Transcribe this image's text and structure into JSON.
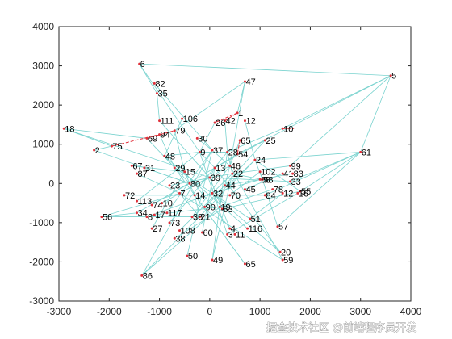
{
  "chart_data": {
    "type": "scatter",
    "title": "",
    "xlabel": "",
    "ylabel": "",
    "xlim": [
      -3000,
      4000
    ],
    "ylim": [
      -3000,
      4000
    ],
    "xticks": [
      -3000,
      -2000,
      -1000,
      0,
      1000,
      2000,
      3000,
      4000
    ],
    "yticks": [
      -3000,
      -2000,
      -1000,
      0,
      1000,
      2000,
      3000,
      4000
    ],
    "xtick_labels": [
      "-3000",
      "-2000",
      "-1000",
      "0",
      "1000",
      "2000",
      "3000",
      "4000"
    ],
    "ytick_labels": [
      "-3000",
      "-2000",
      "-1000",
      "0",
      "1000",
      "2000",
      "3000",
      "4000"
    ],
    "grid": false,
    "edge_color": "#7ad3cf",
    "highlight_color": "#e0303a",
    "nodes": [
      {
        "id": "6",
        "x": -1400,
        "y": 3050
      },
      {
        "id": "5",
        "x": 3600,
        "y": 2750
      },
      {
        "id": "82",
        "x": -1100,
        "y": 2550
      },
      {
        "id": "35",
        "x": -1050,
        "y": 2300
      },
      {
        "id": "47",
        "x": 700,
        "y": 2600
      },
      {
        "id": "1",
        "x": 550,
        "y": 1800
      },
      {
        "id": "12",
        "x": 700,
        "y": 1600
      },
      {
        "id": "26",
        "x": 100,
        "y": 1550
      },
      {
        "id": "42",
        "x": 300,
        "y": 1600
      },
      {
        "id": "106",
        "x": -550,
        "y": 1650
      },
      {
        "id": "111",
        "x": -1000,
        "y": 1600
      },
      {
        "id": "79",
        "x": -700,
        "y": 1350
      },
      {
        "id": "94",
        "x": -1000,
        "y": 1250
      },
      {
        "id": "69",
        "x": -1250,
        "y": 1150
      },
      {
        "id": "18",
        "x": -2900,
        "y": 1400
      },
      {
        "id": "2",
        "x": -2300,
        "y": 850
      },
      {
        "id": "75",
        "x": -1950,
        "y": 950
      },
      {
        "id": "10",
        "x": 1450,
        "y": 1400
      },
      {
        "id": "25",
        "x": 1100,
        "y": 1100
      },
      {
        "id": "30",
        "x": -250,
        "y": 1150
      },
      {
        "id": "65",
        "x": 600,
        "y": 1100
      },
      {
        "id": "54",
        "x": 550,
        "y": 750
      },
      {
        "id": "61",
        "x": 3000,
        "y": 800
      },
      {
        "id": "99",
        "x": 1600,
        "y": 450
      },
      {
        "id": "41",
        "x": 1450,
        "y": 250
      },
      {
        "id": "83",
        "x": 1650,
        "y": 250
      },
      {
        "id": "102",
        "x": 1000,
        "y": 300
      },
      {
        "id": "68",
        "x": 1000,
        "y": 100
      },
      {
        "id": "33",
        "x": 1600,
        "y": 50
      },
      {
        "id": "78",
        "x": 1250,
        "y": -150
      },
      {
        "id": "12b",
        "label": "12",
        "x": 1450,
        "y": -250
      },
      {
        "id": "55",
        "x": 1800,
        "y": -200
      },
      {
        "id": "16",
        "x": 1750,
        "y": -250
      },
      {
        "id": "84",
        "x": 1100,
        "y": -300
      },
      {
        "id": "70",
        "x": 400,
        "y": -300
      },
      {
        "id": "45",
        "x": 700,
        "y": -150
      },
      {
        "id": "67",
        "x": -1550,
        "y": 450
      },
      {
        "id": "31",
        "x": -1300,
        "y": 400
      },
      {
        "id": "87",
        "x": -1450,
        "y": 250
      },
      {
        "id": "72",
        "x": -1700,
        "y": -300
      },
      {
        "id": "113",
        "x": -1450,
        "y": -450
      },
      {
        "id": "74",
        "x": -1150,
        "y": -550
      },
      {
        "id": "10b",
        "label": "10",
        "x": -950,
        "y": -500
      },
      {
        "id": "23",
        "x": -800,
        "y": -50
      },
      {
        "id": "56",
        "x": -2150,
        "y": -850
      },
      {
        "id": "34",
        "x": -1450,
        "y": -750
      },
      {
        "id": "8",
        "x": -1250,
        "y": -850
      },
      {
        "id": "17",
        "x": -1100,
        "y": -800
      },
      {
        "id": "117",
        "x": -850,
        "y": -750
      },
      {
        "id": "73",
        "x": -800,
        "y": -1000
      },
      {
        "id": "27",
        "x": -1150,
        "y": -1150
      },
      {
        "id": "108",
        "x": -600,
        "y": -1200
      },
      {
        "id": "38",
        "x": -700,
        "y": -1400
      },
      {
        "id": "60",
        "x": -150,
        "y": -1250
      },
      {
        "id": "36",
        "x": -350,
        "y": -850
      },
      {
        "id": "90",
        "x": -100,
        "y": -600
      },
      {
        "id": "3",
        "x": 350,
        "y": -1300
      },
      {
        "id": "116",
        "x": 750,
        "y": -1150
      },
      {
        "id": "51",
        "x": 800,
        "y": -900
      },
      {
        "id": "57",
        "x": 1350,
        "y": -1100
      },
      {
        "id": "4",
        "x": 400,
        "y": -1150
      },
      {
        "id": "11",
        "x": 500,
        "y": -1300
      },
      {
        "id": "50",
        "x": -450,
        "y": -1850
      },
      {
        "id": "49",
        "x": 50,
        "y": -1950
      },
      {
        "id": "65b",
        "label": "65",
        "x": 700,
        "y": -2050
      },
      {
        "id": "20",
        "x": 1400,
        "y": -1750
      },
      {
        "id": "59",
        "x": 1450,
        "y": -1950
      },
      {
        "id": "86",
        "x": -1350,
        "y": -2350
      },
      {
        "id": "c1",
        "label": "9",
        "x": -200,
        "y": 800
      },
      {
        "id": "c2",
        "label": "37",
        "x": 50,
        "y": 850
      },
      {
        "id": "c3",
        "label": "28",
        "x": 350,
        "y": 800
      },
      {
        "id": "c4",
        "label": "13",
        "x": 100,
        "y": 400
      },
      {
        "id": "c5",
        "label": "46",
        "x": 400,
        "y": 450
      },
      {
        "id": "c6",
        "label": "15",
        "x": -500,
        "y": 300
      },
      {
        "id": "c7",
        "label": "22",
        "x": 450,
        "y": 250
      },
      {
        "id": "c8",
        "label": "39",
        "x": 0,
        "y": 150
      },
      {
        "id": "c9",
        "label": "80",
        "x": -400,
        "y": 0
      },
      {
        "id": "c10",
        "label": "44",
        "x": 300,
        "y": -50
      },
      {
        "id": "c11",
        "label": "14",
        "x": -300,
        "y": -300
      },
      {
        "id": "c12",
        "label": "32",
        "x": 50,
        "y": -250
      },
      {
        "id": "c13",
        "label": "7",
        "x": -600,
        "y": -250
      },
      {
        "id": "c14",
        "label": "19",
        "x": 200,
        "y": -600
      },
      {
        "id": "c15",
        "label": "21",
        "x": -200,
        "y": -850
      },
      {
        "id": "c16",
        "label": "53",
        "x": 250,
        "y": -650
      },
      {
        "id": "c17",
        "label": "24",
        "x": 900,
        "y": 600
      },
      {
        "id": "c18",
        "label": "48",
        "x": -900,
        "y": 700
      },
      {
        "id": "c19",
        "label": "29",
        "x": -700,
        "y": 400
      },
      {
        "id": "c20",
        "label": "58",
        "x": 1050,
        "y": 100
      }
    ],
    "red_links": [
      [
        "1",
        "26"
      ],
      [
        "42",
        "1"
      ],
      [
        "75",
        "94"
      ],
      [
        "10",
        "10"
      ],
      [
        "65",
        "54"
      ],
      [
        "69",
        "79"
      ]
    ],
    "edges": [
      [
        "6",
        "5"
      ],
      [
        "5",
        "61"
      ],
      [
        "5",
        "10"
      ],
      [
        "5",
        "99"
      ],
      [
        "5",
        "54"
      ],
      [
        "6",
        "35"
      ],
      [
        "6",
        "c1"
      ],
      [
        "82",
        "c2"
      ],
      [
        "35",
        "111"
      ],
      [
        "47",
        "1"
      ],
      [
        "47",
        "c5"
      ],
      [
        "47",
        "79"
      ],
      [
        "18",
        "75"
      ],
      [
        "18",
        "69"
      ],
      [
        "18",
        "c8"
      ],
      [
        "2",
        "75"
      ],
      [
        "2",
        "c9"
      ],
      [
        "61",
        "33"
      ],
      [
        "61",
        "16"
      ],
      [
        "61",
        "84"
      ],
      [
        "61",
        "c17"
      ],
      [
        "61",
        "57"
      ],
      [
        "10",
        "c3"
      ],
      [
        "25",
        "c4"
      ],
      [
        "99",
        "c7"
      ],
      [
        "41",
        "45"
      ],
      [
        "83",
        "c10"
      ],
      [
        "102",
        "70"
      ],
      [
        "68",
        "c12"
      ],
      [
        "33",
        "c8"
      ],
      [
        "78",
        "c14"
      ],
      [
        "55",
        "c16"
      ],
      [
        "12b",
        "51"
      ],
      [
        "16",
        "3"
      ],
      [
        "84",
        "c11"
      ],
      [
        "67",
        "c6"
      ],
      [
        "31",
        "c9"
      ],
      [
        "87",
        "c13"
      ],
      [
        "72",
        "c11"
      ],
      [
        "113",
        "c1"
      ],
      [
        "74",
        "c4"
      ],
      [
        "10b",
        "c5"
      ],
      [
        "23",
        "c7"
      ],
      [
        "56",
        "c13"
      ],
      [
        "56",
        "c15"
      ],
      [
        "56",
        "34"
      ],
      [
        "34",
        "c9"
      ],
      [
        "8",
        "c12"
      ],
      [
        "17",
        "c14"
      ],
      [
        "117",
        "c2"
      ],
      [
        "73",
        "c3"
      ],
      [
        "27",
        "c6"
      ],
      [
        "108",
        "c10"
      ],
      [
        "38",
        "c16"
      ],
      [
        "60",
        "c4"
      ],
      [
        "36",
        "c5"
      ],
      [
        "90",
        "c17"
      ],
      [
        "3",
        "c1"
      ],
      [
        "116",
        "c18"
      ],
      [
        "51",
        "c19"
      ],
      [
        "57",
        "c20"
      ],
      [
        "4",
        "c8"
      ],
      [
        "11",
        "c6"
      ],
      [
        "50",
        "c2"
      ],
      [
        "49",
        "c7"
      ],
      [
        "49",
        "c3"
      ],
      [
        "65b",
        "c11"
      ],
      [
        "65b",
        "c19"
      ],
      [
        "20",
        "c12"
      ],
      [
        "20",
        "c4"
      ],
      [
        "59",
        "c13"
      ],
      [
        "59",
        "c5"
      ],
      [
        "86",
        "c14"
      ],
      [
        "86",
        "c2"
      ],
      [
        "86",
        "c17"
      ],
      [
        "c1",
        "c4"
      ],
      [
        "c2",
        "c5"
      ],
      [
        "c3",
        "c7"
      ],
      [
        "c4",
        "c8"
      ],
      [
        "c5",
        "c10"
      ],
      [
        "c6",
        "c9"
      ],
      [
        "c7",
        "c12"
      ],
      [
        "c8",
        "c13"
      ],
      [
        "c9",
        "c11"
      ],
      [
        "c10",
        "c14"
      ],
      [
        "c11",
        "c15"
      ],
      [
        "c12",
        "c16"
      ],
      [
        "c13",
        "c15"
      ],
      [
        "c14",
        "c16"
      ],
      [
        "c18",
        "c19"
      ],
      [
        "c19",
        "c6"
      ],
      [
        "c17",
        "c20"
      ],
      [
        "c20",
        "c7"
      ],
      [
        "c18",
        "c1"
      ],
      [
        "c1",
        "c3"
      ],
      [
        "26",
        "c1"
      ],
      [
        "42",
        "c3"
      ],
      [
        "106",
        "c18"
      ],
      [
        "94",
        "c19"
      ],
      [
        "30",
        "c2"
      ],
      [
        "65",
        "c5"
      ],
      [
        "54",
        "c4"
      ],
      [
        "12",
        "c17"
      ],
      [
        "79",
        "c6"
      ],
      [
        "69",
        "c9"
      ],
      [
        "111",
        "c8"
      ],
      [
        "25",
        "c10"
      ],
      [
        "102",
        "c20"
      ],
      [
        "55",
        "c17"
      ]
    ]
  },
  "watermark": {
    "text": "掘金技术社区 @前端程序员开发"
  }
}
